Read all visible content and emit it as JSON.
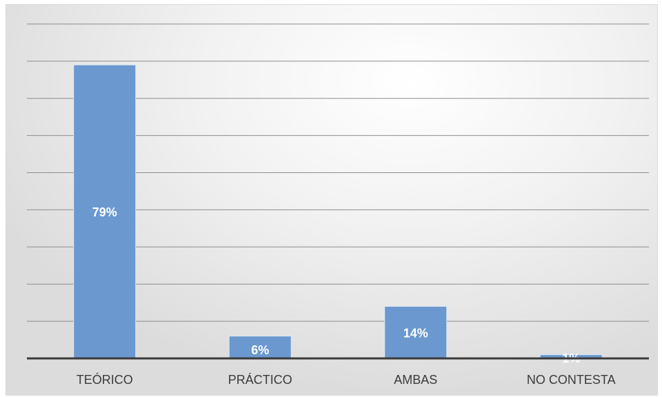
{
  "chart_data": {
    "type": "bar",
    "categories": [
      "TEÓRICO",
      "PRÁCTICO",
      "AMBAS",
      "NO CONTESTA"
    ],
    "values": [
      79,
      6,
      14,
      1
    ],
    "value_labels": [
      "79%",
      "6%",
      "14%",
      "1%"
    ],
    "title": "",
    "xlabel": "",
    "ylabel": "",
    "ylim": [
      0,
      90
    ],
    "grid": true,
    "legend": "none",
    "colors": {
      "bar": "#6a98cf",
      "label": "#ffffff",
      "gridline": "#8c8c8c"
    }
  }
}
